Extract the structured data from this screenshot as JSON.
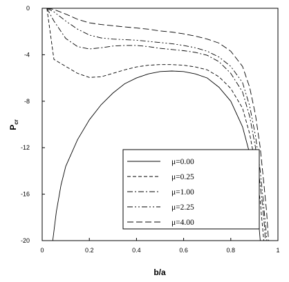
{
  "chart_data": {
    "type": "line",
    "title": "",
    "xlabel": "b/a",
    "ylabel": "P",
    "ylabel_subscript": "cr",
    "xlim": [
      0,
      1
    ],
    "ylim": [
      -20,
      0
    ],
    "xticks": [
      0,
      0.2,
      0.4,
      0.6,
      0.8,
      1
    ],
    "xtick_labels": [
      "0",
      "0.2",
      "0.4",
      "0.6",
      "0.8",
      "1"
    ],
    "yticks": [
      0,
      -4,
      -8,
      -12,
      -16,
      -20
    ],
    "ytick_labels": [
      "0",
      "-4",
      "-8",
      "-12",
      "-16",
      "-20"
    ],
    "grid": false,
    "legend_position": "bottom-center",
    "line_color": "#000000",
    "series": [
      {
        "name": "μ=0.00",
        "dash": "solid",
        "points": [
          [
            0.045,
            -20
          ],
          [
            0.06,
            -17.5
          ],
          [
            0.08,
            -15.2
          ],
          [
            0.1,
            -13.6
          ],
          [
            0.15,
            -11.3
          ],
          [
            0.2,
            -9.6
          ],
          [
            0.25,
            -8.3
          ],
          [
            0.3,
            -7.3
          ],
          [
            0.35,
            -6.5
          ],
          [
            0.4,
            -6.0
          ],
          [
            0.45,
            -5.65
          ],
          [
            0.5,
            -5.45
          ],
          [
            0.55,
            -5.4
          ],
          [
            0.6,
            -5.45
          ],
          [
            0.65,
            -5.65
          ],
          [
            0.7,
            -6.0
          ],
          [
            0.75,
            -6.8
          ],
          [
            0.8,
            -8.0
          ],
          [
            0.85,
            -10.2
          ],
          [
            0.88,
            -12.5
          ],
          [
            0.9,
            -15.0
          ],
          [
            0.915,
            -17.6
          ],
          [
            0.925,
            -20
          ]
        ]
      },
      {
        "name": "μ=0.25",
        "dash": "dashed",
        "points": [
          [
            0.02,
            0.0
          ],
          [
            0.05,
            -4.4
          ],
          [
            0.1,
            -5.0
          ],
          [
            0.15,
            -5.6
          ],
          [
            0.2,
            -5.95
          ],
          [
            0.25,
            -5.9
          ],
          [
            0.3,
            -5.6
          ],
          [
            0.35,
            -5.3
          ],
          [
            0.4,
            -5.05
          ],
          [
            0.45,
            -4.9
          ],
          [
            0.5,
            -4.85
          ],
          [
            0.55,
            -4.85
          ],
          [
            0.6,
            -4.9
          ],
          [
            0.65,
            -5.05
          ],
          [
            0.7,
            -5.3
          ],
          [
            0.75,
            -5.9
          ],
          [
            0.8,
            -6.9
          ],
          [
            0.85,
            -8.6
          ],
          [
            0.88,
            -10.8
          ],
          [
            0.905,
            -13.5
          ],
          [
            0.925,
            -16.6
          ],
          [
            0.94,
            -20
          ]
        ]
      },
      {
        "name": "μ=1.00",
        "dash": "dashdot",
        "points": [
          [
            0.02,
            0.0
          ],
          [
            0.05,
            -1.1
          ],
          [
            0.1,
            -2.6
          ],
          [
            0.15,
            -3.3
          ],
          [
            0.2,
            -3.5
          ],
          [
            0.25,
            -3.4
          ],
          [
            0.3,
            -3.25
          ],
          [
            0.35,
            -3.2
          ],
          [
            0.4,
            -3.2
          ],
          [
            0.45,
            -3.3
          ],
          [
            0.5,
            -3.45
          ],
          [
            0.55,
            -3.55
          ],
          [
            0.6,
            -3.65
          ],
          [
            0.65,
            -3.8
          ],
          [
            0.7,
            -4.05
          ],
          [
            0.75,
            -4.6
          ],
          [
            0.8,
            -5.6
          ],
          [
            0.85,
            -7.2
          ],
          [
            0.88,
            -9.3
          ],
          [
            0.905,
            -12.0
          ],
          [
            0.925,
            -15.2
          ],
          [
            0.94,
            -18.0
          ],
          [
            0.947,
            -20
          ]
        ]
      },
      {
        "name": "μ=2.25",
        "dash": "dashdotdot",
        "points": [
          [
            0.02,
            0.0
          ],
          [
            0.05,
            -0.3
          ],
          [
            0.1,
            -1.1
          ],
          [
            0.15,
            -1.8
          ],
          [
            0.2,
            -2.3
          ],
          [
            0.25,
            -2.55
          ],
          [
            0.3,
            -2.65
          ],
          [
            0.35,
            -2.7
          ],
          [
            0.4,
            -2.75
          ],
          [
            0.45,
            -2.85
          ],
          [
            0.5,
            -2.95
          ],
          [
            0.55,
            -3.05
          ],
          [
            0.6,
            -3.2
          ],
          [
            0.65,
            -3.4
          ],
          [
            0.7,
            -3.7
          ],
          [
            0.75,
            -4.2
          ],
          [
            0.8,
            -5.0
          ],
          [
            0.85,
            -6.4
          ],
          [
            0.88,
            -8.4
          ],
          [
            0.905,
            -11.0
          ],
          [
            0.925,
            -14.0
          ],
          [
            0.94,
            -17.0
          ],
          [
            0.953,
            -20
          ]
        ]
      },
      {
        "name": "μ=4.00",
        "dash": "longdash",
        "points": [
          [
            0.02,
            0.0
          ],
          [
            0.05,
            -0.1
          ],
          [
            0.1,
            -0.5
          ],
          [
            0.15,
            -0.95
          ],
          [
            0.2,
            -1.25
          ],
          [
            0.25,
            -1.4
          ],
          [
            0.3,
            -1.5
          ],
          [
            0.35,
            -1.6
          ],
          [
            0.4,
            -1.7
          ],
          [
            0.45,
            -1.8
          ],
          [
            0.5,
            -1.95
          ],
          [
            0.55,
            -2.05
          ],
          [
            0.6,
            -2.2
          ],
          [
            0.65,
            -2.4
          ],
          [
            0.7,
            -2.65
          ],
          [
            0.75,
            -3.0
          ],
          [
            0.8,
            -3.7
          ],
          [
            0.85,
            -5.0
          ],
          [
            0.88,
            -6.8
          ],
          [
            0.905,
            -9.2
          ],
          [
            0.925,
            -12.0
          ],
          [
            0.94,
            -15.0
          ],
          [
            0.952,
            -17.5
          ],
          [
            0.96,
            -20
          ]
        ]
      }
    ]
  }
}
